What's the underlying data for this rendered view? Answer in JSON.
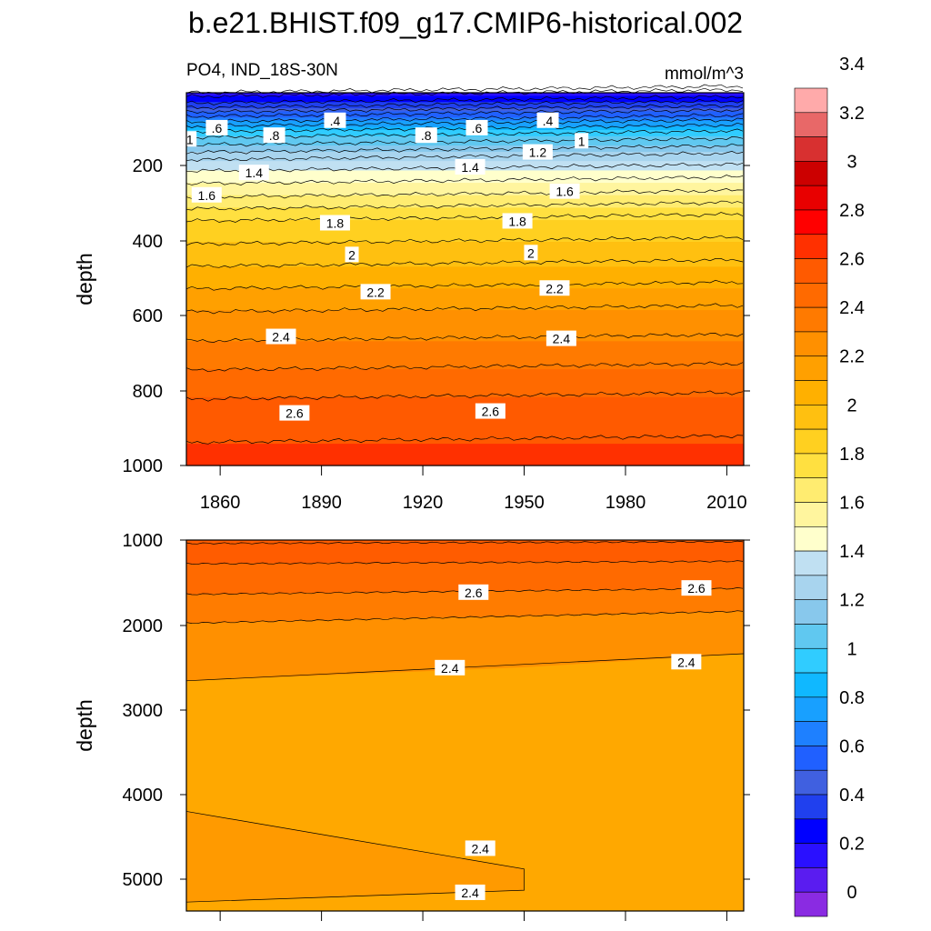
{
  "figure": {
    "title": "b.e21.BHIST.f09_g17.CMIP6-historical.002",
    "subtitle_left": "PO4, IND_18S-30N",
    "units": "mmol/m^3"
  },
  "chart_data": {
    "type": "contour",
    "variable": "PO4",
    "region": "IND_18S-30N",
    "units": "mmol/m^3",
    "x": {
      "ticks": [
        1860,
        1890,
        1920,
        1950,
        1980,
        2010
      ],
      "range": [
        1850,
        2015
      ]
    },
    "panels": [
      {
        "name": "upper",
        "ylabel": "depth",
        "yticks": [
          200,
          400,
          600,
          800,
          1000
        ],
        "ylim": [
          0,
          1000
        ],
        "inverted": true,
        "contour_labels": [
          {
            "text": ".6",
            "x": 1859,
            "y": 95
          },
          {
            "text": ".4",
            "x": 1894,
            "y": 75
          },
          {
            "text": "1",
            "x": 1851,
            "y": 125
          },
          {
            "text": ".8",
            "x": 1876,
            "y": 115
          },
          {
            "text": ".8",
            "x": 1921,
            "y": 115
          },
          {
            "text": ".6",
            "x": 1936,
            "y": 95
          },
          {
            "text": ".4",
            "x": 1957,
            "y": 75
          },
          {
            "text": "1.2",
            "x": 1954,
            "y": 160
          },
          {
            "text": "1",
            "x": 1967,
            "y": 130
          },
          {
            "text": "1.4",
            "x": 1870,
            "y": 215
          },
          {
            "text": "1.4",
            "x": 1934,
            "y": 200
          },
          {
            "text": "1.6",
            "x": 1856,
            "y": 275
          },
          {
            "text": "1.6",
            "x": 1962,
            "y": 265
          },
          {
            "text": "1.8",
            "x": 1894,
            "y": 350
          },
          {
            "text": "1.8",
            "x": 1948,
            "y": 345
          },
          {
            "text": "2",
            "x": 1899,
            "y": 435
          },
          {
            "text": "2",
            "x": 1952,
            "y": 430
          },
          {
            "text": "2.2",
            "x": 1906,
            "y": 535
          },
          {
            "text": "2.2",
            "x": 1959,
            "y": 525
          },
          {
            "text": "2.4",
            "x": 1878,
            "y": 655
          },
          {
            "text": "2.4",
            "x": 1961,
            "y": 660
          },
          {
            "text": "2.6",
            "x": 1882,
            "y": 860
          },
          {
            "text": "2.6",
            "x": 1940,
            "y": 855
          }
        ]
      },
      {
        "name": "lower",
        "ylabel": "depth",
        "yticks": [
          1000,
          2000,
          3000,
          4000,
          5000
        ],
        "ylim": [
          1000,
          5375
        ],
        "inverted": true,
        "contour_labels": [
          {
            "text": "2.6",
            "x": 1935,
            "y": 1620
          },
          {
            "text": "2.6",
            "x": 2001,
            "y": 1570
          },
          {
            "text": "2.4",
            "x": 1928,
            "y": 2510
          },
          {
            "text": "2.4",
            "x": 1998,
            "y": 2440
          },
          {
            "text": "2.4",
            "x": 1937,
            "y": 4640
          },
          {
            "text": "2.4",
            "x": 1934,
            "y": 5160
          }
        ]
      }
    ],
    "colorbar": {
      "labels": [
        "0",
        "0.2",
        "0.4",
        "0.6",
        "0.8",
        "1",
        "1.2",
        "1.4",
        "1.6",
        "1.8",
        "2",
        "2.2",
        "2.4",
        "2.6",
        "2.8",
        "3",
        "3.2",
        "3.4"
      ],
      "colors": [
        "#8a2be2",
        "#5a1cf0",
        "#2a10ff",
        "#0000ff",
        "#2040ee",
        "#4060e0",
        "#2060ff",
        "#1e80ff",
        "#18a0ff",
        "#10b8ff",
        "#30ccff",
        "#60c8f0",
        "#88c8ec",
        "#a8d4ee",
        "#c0e0f2",
        "#ffffcc",
        "#fff59e",
        "#ffec70",
        "#ffe040",
        "#ffd020",
        "#ffc010",
        "#ffb000",
        "#ffa000",
        "#ff9000",
        "#ff7a00",
        "#ff6a00",
        "#ff5a00",
        "#ff3000",
        "#ff0000",
        "#e80000",
        "#cc0000",
        "#d83030",
        "#e86868",
        "#ffaaaa"
      ]
    }
  }
}
